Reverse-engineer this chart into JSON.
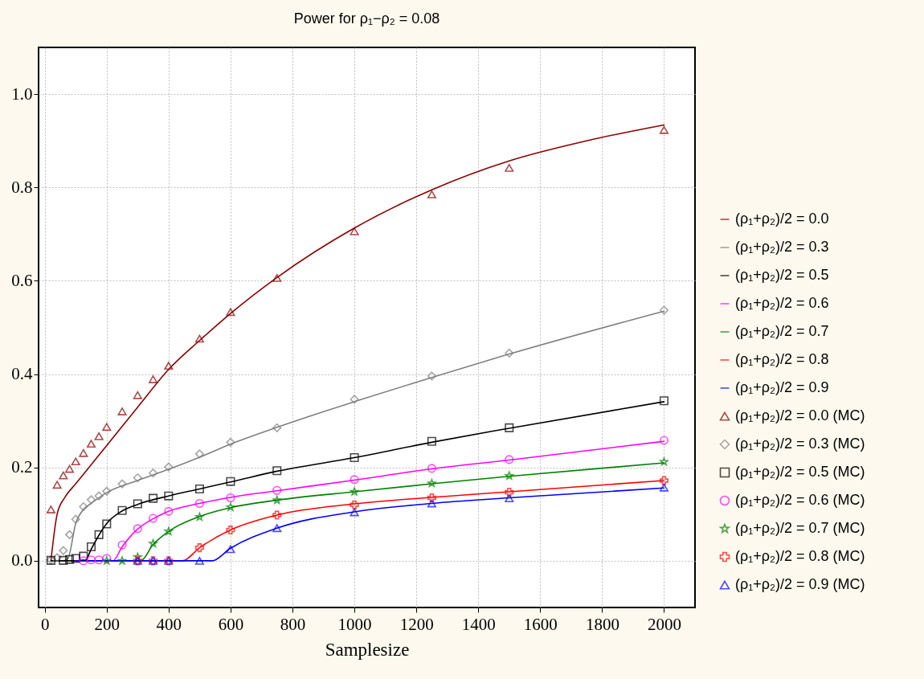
{
  "chart_data": {
    "type": "line",
    "title": "Power for ρ₁−ρ₂ = 0.08",
    "xlabel": "Samplesize",
    "xlim": [
      -20,
      2100
    ],
    "ylim": [
      -0.1,
      1.1
    ],
    "xticks": [
      0,
      200,
      400,
      600,
      800,
      1000,
      1200,
      1400,
      1600,
      1800,
      2000
    ],
    "yticks": [
      {
        "value": 0,
        "label": "0.0"
      },
      {
        "value": 0.2,
        "label": "0.2"
      },
      {
        "value": 0.4,
        "label": "0.4"
      },
      {
        "value": 0.6,
        "label": "0.6"
      },
      {
        "value": 0.8,
        "label": "0.8"
      },
      {
        "value": 1,
        "label": "1.0"
      }
    ],
    "grid": true,
    "legend": "right",
    "series": [
      {
        "name": "(ρ₁+ρ₂)/2 = 0.0",
        "type": "line",
        "marker": "none",
        "color": "#8b0000",
        "x": [
          20,
          40,
          65,
          100,
          150,
          200,
          300,
          400,
          500,
          600,
          750,
          1000,
          1250,
          1500,
          1750,
          2000
        ],
        "values": [
          0.0,
          0.1,
          0.136,
          0.165,
          0.206,
          0.247,
          0.329,
          0.41,
          0.472,
          0.53,
          0.607,
          0.713,
          0.795,
          0.857,
          0.9,
          0.934
        ]
      },
      {
        "name": "(ρ₁+ρ₂)/2 = 0.3",
        "type": "line",
        "marker": "none",
        "color": "#808080",
        "x": [
          60,
          75,
          100,
          125,
          150,
          200,
          300,
          400,
          500,
          600,
          750,
          1000,
          1250,
          1500,
          2000
        ],
        "values": [
          0.0,
          0.005,
          0.08,
          0.11,
          0.123,
          0.146,
          0.172,
          0.196,
          0.222,
          0.25,
          0.286,
          0.341,
          0.393,
          0.443,
          0.535
        ]
      },
      {
        "name": "(ρ₁+ρ₂)/2 = 0.5",
        "type": "line",
        "marker": "none",
        "color": "#000000",
        "x": [
          20,
          130,
          150,
          175,
          200,
          250,
          300,
          400,
          500,
          600,
          750,
          1000,
          1250,
          1500,
          2000
        ],
        "values": [
          0.0,
          0.0,
          0.025,
          0.055,
          0.08,
          0.107,
          0.121,
          0.139,
          0.154,
          0.169,
          0.192,
          0.221,
          0.254,
          0.284,
          0.341
        ]
      },
      {
        "name": "(ρ₁+ρ₂)/2 = 0.6",
        "type": "line",
        "marker": "none",
        "color": "#ff00ff",
        "x": [
          100,
          220,
          250,
          300,
          350,
          400,
          500,
          600,
          750,
          1000,
          1250,
          1500,
          2000
        ],
        "values": [
          0.0,
          0.0,
          0.03,
          0.068,
          0.09,
          0.106,
          0.123,
          0.136,
          0.15,
          0.173,
          0.197,
          0.216,
          0.256
        ]
      },
      {
        "name": "(ρ₁+ρ₂)/2 = 0.7",
        "type": "line",
        "marker": "none",
        "color": "#008000",
        "x": [
          100,
          310,
          350,
          400,
          500,
          600,
          750,
          1000,
          1250,
          1500,
          2000
        ],
        "values": [
          0.0,
          0.0,
          0.035,
          0.063,
          0.095,
          0.114,
          0.13,
          0.148,
          0.165,
          0.181,
          0.21
        ]
      },
      {
        "name": "(ρ₁+ρ₂)/2 = 0.8",
        "type": "line",
        "marker": "none",
        "color": "#ff0000",
        "x": [
          100,
          445,
          500,
          600,
          750,
          1000,
          1250,
          1500,
          2000
        ],
        "values": [
          0.0,
          0.0,
          0.028,
          0.066,
          0.098,
          0.122,
          0.136,
          0.148,
          0.172
        ]
      },
      {
        "name": "(ρ₁+ρ₂)/2 = 0.9",
        "type": "line",
        "marker": "none",
        "color": "#0000ff",
        "x": [
          100,
          540,
          600,
          750,
          1000,
          1250,
          1500,
          2000
        ],
        "values": [
          0.0,
          0.0,
          0.027,
          0.07,
          0.105,
          0.123,
          0.135,
          0.156
        ]
      },
      {
        "name": "(ρ₁+ρ₂)/2 = 0.0 (MC)",
        "type": "scatter",
        "marker": "triangle",
        "color": "#8b0000",
        "x": [
          20,
          40,
          60,
          80,
          100,
          125,
          150,
          175,
          200,
          250,
          300,
          350,
          400,
          500,
          600,
          750,
          1000,
          1250,
          1500,
          2000
        ],
        "values": [
          0.11,
          0.163,
          0.183,
          0.197,
          0.213,
          0.231,
          0.251,
          0.267,
          0.287,
          0.32,
          0.355,
          0.389,
          0.418,
          0.476,
          0.533,
          0.606,
          0.706,
          0.785,
          0.842,
          0.923
        ]
      },
      {
        "name": "(ρ₁+ρ₂)/2 = 0.3 (MC)",
        "type": "scatter",
        "marker": "diamond",
        "color": "#808080",
        "x": [
          20,
          40,
          60,
          80,
          100,
          125,
          150,
          175,
          200,
          250,
          300,
          350,
          400,
          500,
          600,
          750,
          1000,
          1250,
          1500,
          2000
        ],
        "values": [
          0.002,
          0.007,
          0.022,
          0.056,
          0.089,
          0.116,
          0.131,
          0.139,
          0.149,
          0.165,
          0.178,
          0.188,
          0.201,
          0.229,
          0.254,
          0.285,
          0.346,
          0.396,
          0.445,
          0.537
        ]
      },
      {
        "name": "(ρ₁+ρ₂)/2 = 0.5 (MC)",
        "type": "scatter",
        "marker": "square",
        "color": "#000000",
        "x": [
          20,
          60,
          80,
          100,
          125,
          150,
          175,
          200,
          250,
          300,
          350,
          400,
          500,
          600,
          750,
          1000,
          1250,
          1500,
          2000
        ],
        "values": [
          0.001,
          0.001,
          0.003,
          0.005,
          0.01,
          0.03,
          0.056,
          0.079,
          0.108,
          0.122,
          0.134,
          0.139,
          0.154,
          0.17,
          0.193,
          0.221,
          0.256,
          0.285,
          0.343
        ]
      },
      {
        "name": "(ρ₁+ρ₂)/2 = 0.6 (MC)",
        "type": "scatter",
        "marker": "circle",
        "color": "#ff00ff",
        "x": [
          125,
          150,
          175,
          200,
          250,
          300,
          350,
          400,
          500,
          600,
          750,
          1000,
          1250,
          1500,
          2000
        ],
        "values": [
          0.0,
          0.002,
          0.002,
          0.005,
          0.034,
          0.069,
          0.091,
          0.106,
          0.123,
          0.135,
          0.151,
          0.174,
          0.198,
          0.217,
          0.258
        ]
      },
      {
        "name": "(ρ₁+ρ₂)/2 = 0.7 (MC)",
        "type": "scatter",
        "marker": "star",
        "color": "#008000",
        "x": [
          200,
          250,
          300,
          350,
          400,
          500,
          600,
          750,
          1000,
          1250,
          1500,
          2000
        ],
        "values": [
          0.0,
          0.0,
          0.008,
          0.037,
          0.063,
          0.094,
          0.115,
          0.13,
          0.148,
          0.166,
          0.182,
          0.212
        ]
      },
      {
        "name": "(ρ₁+ρ₂)/2 = 0.8 (MC)",
        "type": "scatter",
        "marker": "cross",
        "color": "#ff0000",
        "x": [
          300,
          350,
          400,
          500,
          600,
          750,
          1000,
          1250,
          1500,
          2000
        ],
        "values": [
          0.0,
          0.0,
          0.0,
          0.028,
          0.066,
          0.098,
          0.12,
          0.135,
          0.147,
          0.172
        ]
      },
      {
        "name": "(ρ₁+ρ₂)/2 = 0.9 (MC)",
        "type": "scatter",
        "marker": "triangle",
        "color": "#0000ff",
        "x": [
          300,
          350,
          400,
          500,
          600,
          750,
          1000,
          1250,
          1500,
          2000
        ],
        "values": [
          0.0,
          0.0,
          0.0,
          0.0,
          0.025,
          0.07,
          0.104,
          0.123,
          0.134,
          0.157
        ]
      }
    ]
  }
}
